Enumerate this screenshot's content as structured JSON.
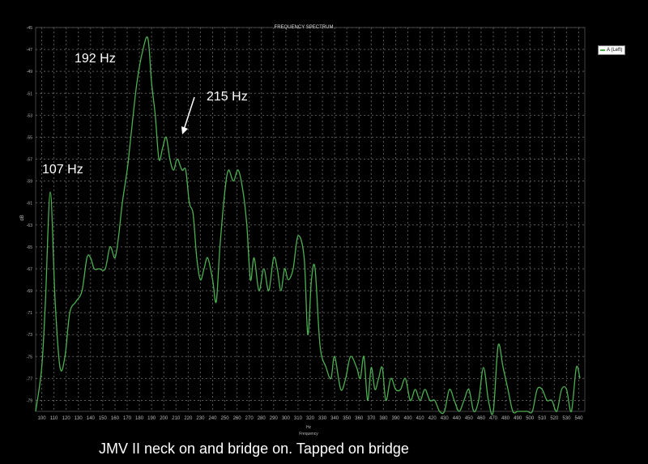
{
  "chart_data": {
    "type": "line",
    "title": "FREQUENCY SPECTRUM",
    "xlabel": "Frequency",
    "xunit": "Hz",
    "ylabel": "dB",
    "xlim": [
      95,
      545
    ],
    "ylim": [
      -80,
      -45
    ],
    "grid": true,
    "legend_position": "top-right",
    "line_color": "#4caf50",
    "x_ticks": [
      100,
      110,
      120,
      130,
      140,
      150,
      160,
      170,
      180,
      190,
      200,
      210,
      220,
      230,
      240,
      250,
      260,
      270,
      280,
      290,
      300,
      310,
      320,
      330,
      340,
      350,
      360,
      370,
      380,
      390,
      400,
      410,
      420,
      430,
      440,
      450,
      460,
      470,
      480,
      490,
      500,
      510,
      520,
      530,
      540
    ],
    "y_ticks": [
      -45,
      -47,
      -49,
      -51,
      -53,
      -55,
      -57,
      -59,
      -61,
      -63,
      -65,
      -67,
      -69,
      -71,
      -73,
      -75,
      -77,
      -79
    ],
    "series": [
      {
        "name": "A (Left)",
        "x": [
          95,
          100,
          103,
          107,
          111,
          115,
          119,
          123,
          128,
          133,
          137,
          140,
          143,
          147,
          152,
          156,
          160,
          163,
          166,
          170,
          173,
          178,
          183,
          187,
          190,
          193,
          196,
          199,
          202,
          205,
          208,
          211,
          215,
          218,
          221,
          224,
          227,
          230,
          233,
          236,
          240,
          243,
          246,
          250,
          253,
          257,
          261,
          265,
          268,
          271,
          274,
          278,
          282,
          286,
          290,
          293,
          296,
          299,
          302,
          306,
          310,
          315,
          318,
          321,
          324,
          328,
          333,
          337,
          340,
          345,
          349,
          353,
          358,
          361,
          364,
          367,
          370,
          373,
          376,
          379,
          382,
          386,
          390,
          394,
          398,
          402,
          406,
          410,
          414,
          418,
          422,
          426,
          430,
          434,
          438,
          442,
          446,
          450,
          454,
          458,
          462,
          466,
          470,
          474,
          478,
          482,
          486,
          490,
          494,
          498,
          502,
          506,
          510,
          514,
          518,
          522,
          526,
          530,
          534,
          538,
          541
        ],
        "values": [
          -80,
          -76,
          -70,
          -60,
          -70,
          -76,
          -75,
          -71,
          -70,
          -69,
          -66,
          -66,
          -67,
          -67,
          -67,
          -65,
          -66,
          -64,
          -61,
          -58,
          -55,
          -50,
          -47,
          -46,
          -50,
          -53,
          -57,
          -56,
          -55,
          -57,
          -58,
          -57,
          -58,
          -58,
          -61,
          -62,
          -66,
          -68,
          -67,
          -66,
          -68,
          -70,
          -65,
          -60,
          -58,
          -59,
          -58,
          -60,
          -63,
          -68,
          -66,
          -69,
          -67,
          -69,
          -66,
          -67,
          -69,
          -67,
          -68,
          -67,
          -64,
          -66,
          -73,
          -68,
          -67,
          -74,
          -76,
          -77,
          -75,
          -78,
          -77,
          -75,
          -76,
          -77,
          -75,
          -79,
          -76,
          -78,
          -77,
          -76,
          -79,
          -77,
          -78,
          -78,
          -77,
          -79,
          -78,
          -79,
          -78,
          -79,
          -79,
          -80,
          -80,
          -78,
          -79,
          -80,
          -79,
          -78,
          -80,
          -79,
          -76,
          -79,
          -80,
          -74,
          -76,
          -78,
          -80,
          -80,
          -80,
          -80,
          -80,
          -78,
          -78,
          -79,
          -79,
          -80,
          -78,
          -78,
          -80,
          -76,
          -77
        ],
        "color": "#4caf50"
      }
    ]
  },
  "annotations": {
    "peak_107": "107 Hz",
    "peak_192": "192 Hz",
    "peak_215": "215 Hz"
  },
  "caption": "JMV II neck on and bridge on. Tapped on bridge"
}
